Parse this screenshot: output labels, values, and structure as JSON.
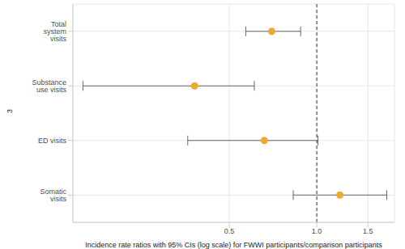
{
  "chart_data": {
    "type": "scatter",
    "categories": [
      "Total system visits",
      "Substance use visits",
      "ED visits",
      "Somatic visits"
    ],
    "values": [
      0.7,
      0.38,
      0.66,
      1.2
    ],
    "ci_low": [
      0.57,
      0.157,
      0.36,
      0.83
    ],
    "ci_high": [
      0.88,
      0.61,
      1.01,
      1.74
    ],
    "color": "#f0a830",
    "xlabel": "Incidence rate ratios with 95% CIs (log scale) for FWWI participants/comparison participants",
    "ylabel": "3",
    "xlim": [
      0.145,
      1.85
    ],
    "xticks": [
      0.5,
      {
        "value": 1,
        "label": "1.0"
      },
      1.5
    ],
    "log": "x",
    "grid": true,
    "ref_line": 1,
    "marker": "circle"
  }
}
